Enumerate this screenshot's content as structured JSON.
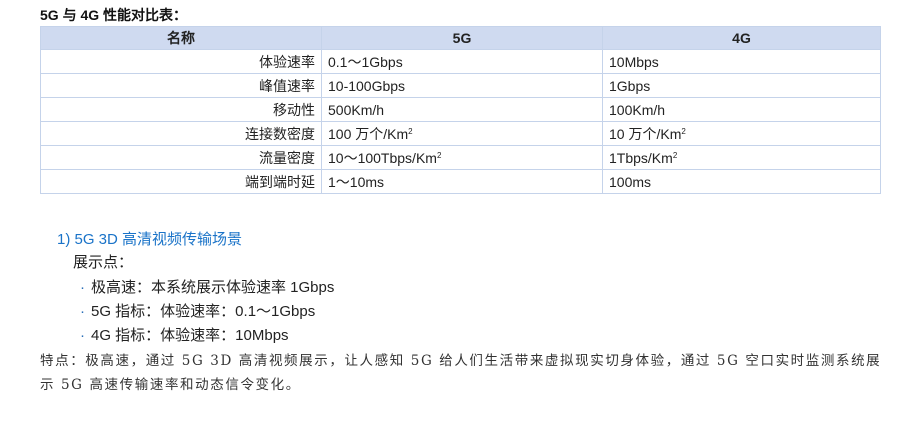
{
  "title": "5G 与 4G 性能对比表：",
  "table": {
    "headers": [
      "名称",
      "5G",
      "4G"
    ],
    "rows": [
      {
        "name": "体验速率",
        "g5": "0.1～1Gbps",
        "g4": "10Mbps"
      },
      {
        "name": "峰值速率",
        "g5": "10-100Gbps",
        "g4": "1Gbps"
      },
      {
        "name": "移动性",
        "g5": "500Km/h",
        "g4": "100Km/h"
      },
      {
        "name": "连接数密度",
        "g5": "100 万个/Km",
        "g5sup": "2",
        "g4": "10 万个/Km",
        "g4sup": "2"
      },
      {
        "name": "流量密度",
        "g5": "10～100Tbps/Km",
        "g5sup": "2",
        "g4": "1Tbps/Km",
        "g4sup": "2"
      },
      {
        "name": "端到端时延",
        "g5": "1～10ms",
        "g4": "100ms"
      }
    ]
  },
  "section": {
    "heading": "1) 5G 3D 高清视频传输场景",
    "label": "展示点：",
    "bullet": "·",
    "bullets": [
      "极高速：本系统展示体验速率 1Gbps",
      "5G 指标：体验速率：0.1～1Gbps",
      "4G 指标：体验速率：10Mbps"
    ],
    "paragraph": "特点：极高速，通过 5G 3D 高清视频展示，让人感知 5G 给人们生活带来虚拟现实切身体验，通过 5G 空口实时监测系统展示 5G 高速传输速率和动态信令变化。"
  }
}
